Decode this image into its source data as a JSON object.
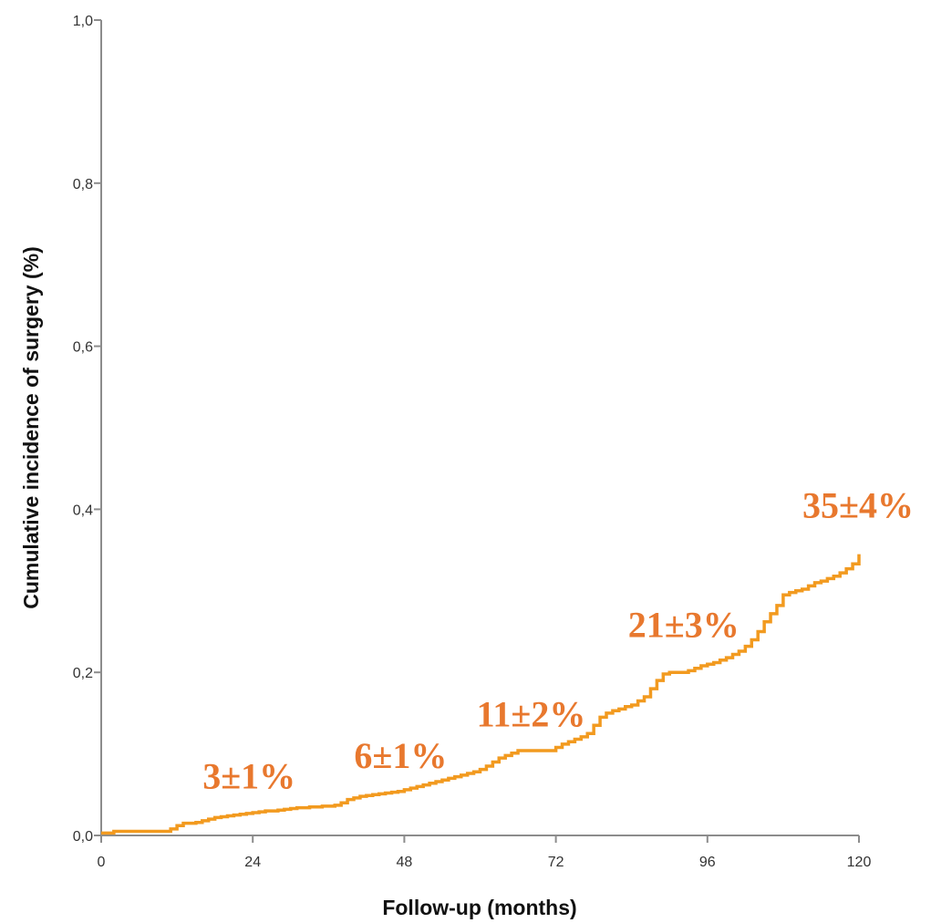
{
  "chart_data": {
    "type": "line",
    "title": "",
    "xlabel": "Follow-up (months)",
    "ylabel": "Cumulative incidence of surgery (%)",
    "xlim": [
      0,
      120
    ],
    "ylim": [
      0,
      1.0
    ],
    "x_ticks": [
      "0",
      "24",
      "48",
      "72",
      "96",
      "120"
    ],
    "x_tick_values": [
      0,
      24,
      48,
      72,
      96,
      120
    ],
    "y_ticks": [
      "0,0",
      "0,2",
      "0,4",
      "0,6",
      "0,8",
      "1,0"
    ],
    "y_tick_values": [
      0,
      0.2,
      0.4,
      0.6,
      0.8,
      1.0
    ],
    "grid": false,
    "series_color": "#F29A1F",
    "annotation_color": "#E8782E",
    "series": [
      {
        "step": true,
        "x": [
          0,
          2,
          11,
          12,
          13,
          15,
          16,
          17,
          18,
          19,
          20,
          21,
          22,
          23,
          24,
          25,
          26,
          27,
          28,
          29,
          30,
          31,
          33,
          35,
          37,
          38,
          39,
          40,
          41,
          42,
          43,
          44,
          45,
          46,
          47,
          48,
          49,
          50,
          51,
          52,
          53,
          54,
          55,
          56,
          57,
          58,
          59,
          60,
          61,
          62,
          63,
          64,
          65,
          66,
          72,
          73,
          74,
          75,
          76,
          77,
          78,
          79,
          80,
          81,
          82,
          83,
          84,
          85,
          86,
          87,
          88,
          89,
          90,
          91,
          93,
          94,
          95,
          96,
          97,
          98,
          99,
          100,
          101,
          102,
          103,
          104,
          105,
          106,
          107,
          108,
          109,
          110,
          111,
          112,
          113,
          114,
          115,
          116,
          117,
          118,
          119,
          120
        ],
        "values": [
          0.003,
          0.005,
          0.008,
          0.012,
          0.015,
          0.016,
          0.018,
          0.02,
          0.022,
          0.023,
          0.024,
          0.025,
          0.026,
          0.027,
          0.028,
          0.029,
          0.03,
          0.03,
          0.031,
          0.032,
          0.033,
          0.034,
          0.035,
          0.036,
          0.037,
          0.04,
          0.044,
          0.046,
          0.048,
          0.049,
          0.05,
          0.051,
          0.052,
          0.053,
          0.054,
          0.056,
          0.058,
          0.06,
          0.062,
          0.064,
          0.066,
          0.068,
          0.07,
          0.072,
          0.074,
          0.076,
          0.078,
          0.081,
          0.085,
          0.09,
          0.095,
          0.098,
          0.101,
          0.104,
          0.108,
          0.112,
          0.115,
          0.118,
          0.121,
          0.125,
          0.135,
          0.145,
          0.15,
          0.153,
          0.155,
          0.158,
          0.16,
          0.165,
          0.17,
          0.18,
          0.19,
          0.198,
          0.2,
          0.2,
          0.202,
          0.205,
          0.208,
          0.21,
          0.212,
          0.215,
          0.218,
          0.222,
          0.226,
          0.232,
          0.24,
          0.25,
          0.262,
          0.272,
          0.282,
          0.295,
          0.298,
          0.3,
          0.302,
          0.306,
          0.31,
          0.312,
          0.315,
          0.318,
          0.322,
          0.327,
          0.333,
          0.345
        ]
      }
    ],
    "annotations": [
      {
        "text": "3±1%",
        "x": 24,
        "y": 0.033
      },
      {
        "text": "6±1%",
        "x": 48,
        "y": 0.056
      },
      {
        "text": "11±2%",
        "x": 72,
        "y": 0.108
      },
      {
        "text": "21±3%",
        "x": 96,
        "y": 0.21
      },
      {
        "text": "35±4%",
        "x": 120,
        "y": 0.345
      }
    ]
  }
}
